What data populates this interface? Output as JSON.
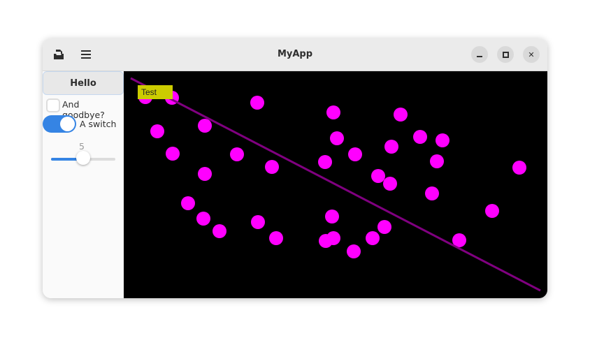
{
  "window": {
    "title": "MyApp"
  },
  "header": {
    "icons": [
      "document-save-icon",
      "menu-icon"
    ],
    "controls": [
      "minimize-icon",
      "maximize-icon",
      "close-icon"
    ]
  },
  "sidebar": {
    "button_label": "Hello",
    "checkbox_label": "And goodbye?",
    "checkbox_checked": false,
    "switch_label": "A switch",
    "switch_on": true,
    "slider_value": "5",
    "slider_fraction": 0.5
  },
  "canvas": {
    "label": "Test",
    "colors": {
      "background": "#000000",
      "circle": "#ff00ff",
      "line": "#800080",
      "label_bg": "#cccc00"
    }
  }
}
